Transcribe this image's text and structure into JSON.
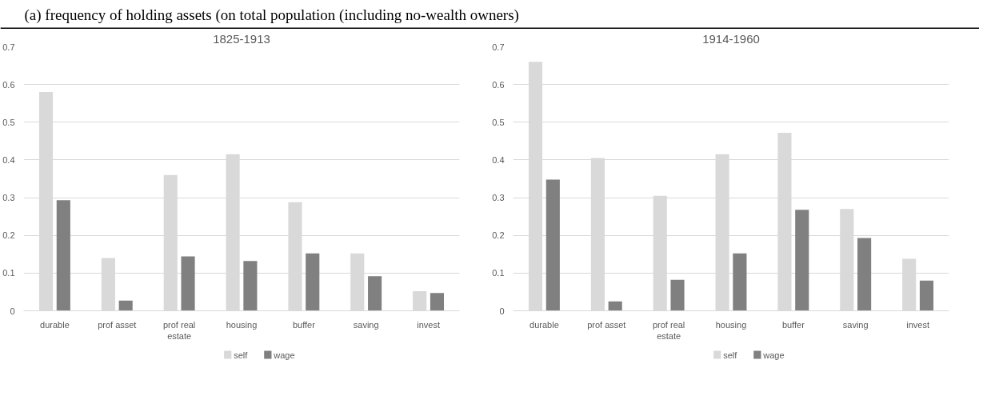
{
  "chart_data": [
    {
      "type": "bar",
      "title": "1825-1913",
      "annotations": [
        "(a)  frequency of holding assets (on total population (including no-wealth owners)"
      ],
      "categories": [
        "durable",
        "prof asset",
        "prof real estate",
        "housing",
        "buffer",
        "saving",
        "invest"
      ],
      "series": [
        {
          "name": "self",
          "color": "#d9d9d9",
          "values": [
            0.58,
            0.14,
            0.36,
            0.415,
            0.288,
            0.152,
            0.052
          ]
        },
        {
          "name": "wage",
          "color": "#808080",
          "values": [
            0.293,
            0.027,
            0.144,
            0.132,
            0.152,
            0.092,
            0.047
          ]
        }
      ],
      "ylim": [
        0,
        0.7
      ],
      "yticks": [
        {
          "value": 0,
          "label": "0"
        },
        0.1,
        0.2,
        0.3,
        0.4,
        0.5,
        0.6,
        0.7
      ],
      "grid": "y",
      "legend": "bottom"
    },
    {
      "type": "bar",
      "title": "1914-1960",
      "categories": [
        "durable",
        "prof asset",
        "prof real estate",
        "housing",
        "buffer",
        "saving",
        "invest"
      ],
      "series": [
        {
          "name": "self",
          "color": "#d9d9d9",
          "values": [
            0.66,
            0.405,
            0.305,
            0.415,
            0.472,
            0.27,
            0.138
          ]
        },
        {
          "name": "wage",
          "color": "#808080",
          "values": [
            0.348,
            0.025,
            0.082,
            0.152,
            0.268,
            0.193,
            0.08
          ]
        }
      ],
      "ylim": [
        0,
        0.7
      ],
      "yticks": [
        {
          "value": 0,
          "label": "0"
        },
        0.1,
        0.2,
        0.3,
        0.4,
        0.5,
        0.6,
        0.7
      ],
      "grid": "y",
      "legend": "bottom"
    }
  ]
}
